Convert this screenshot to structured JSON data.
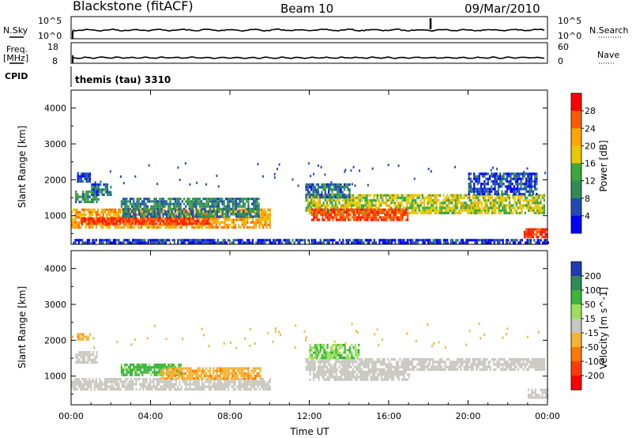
{
  "header": {
    "station": "Blackstone (fitACF)",
    "beam": "Beam 10",
    "date": "09/Mar/2010"
  },
  "top_panels": {
    "nsky_label": "N.Sky",
    "nsky_ticks": [
      "10^5",
      "10^0"
    ],
    "nsearch_label": "N.Search",
    "nsearch_ticks": [
      "10^5",
      "10^0"
    ],
    "freq_label": "Freq.",
    "freq_unit": "[MHz]",
    "freq_ticks": [
      "18",
      "8"
    ],
    "nave_label": "Nave",
    "nave_ticks": [
      "60",
      "0"
    ],
    "cpid_label": "CPID",
    "cpid_value": "themis (tau) 3310"
  },
  "chart_data": [
    {
      "type": "heatmap",
      "parameter": "power",
      "ylabel": "Slant Range [km]",
      "ylim": [
        200,
        4500
      ],
      "yticks": [
        "1000",
        "2000",
        "3000",
        "4000"
      ],
      "xlim": [
        0,
        24
      ],
      "colorbar_label": "Power [dB]",
      "colorbar_ticks": [
        "28",
        "24",
        "20",
        "16",
        "12",
        "8",
        "4"
      ],
      "colorbar_colors": [
        "#ff0000",
        "#ff5a00",
        "#ffa500",
        "#e8c800",
        "#3aa83a",
        "#2e8b57",
        "#1e4bb4",
        "#0000ff"
      ],
      "regions": [
        {
          "t0": 0.2,
          "t1": 1.4,
          "r0": 1350,
          "r1": 1700,
          "value": 10
        },
        {
          "t0": 0.3,
          "t1": 1.0,
          "r0": 1950,
          "r1": 2200,
          "value": 6
        },
        {
          "t0": 1.0,
          "t1": 2.0,
          "r0": 1600,
          "r1": 1900,
          "value": 8
        },
        {
          "t0": 0.0,
          "t1": 10.0,
          "r0": 700,
          "r1": 1200,
          "value": 20
        },
        {
          "t0": 0.5,
          "t1": 7.0,
          "r0": 750,
          "r1": 950,
          "value": 27
        },
        {
          "t0": 2.5,
          "t1": 9.5,
          "r0": 1000,
          "r1": 1500,
          "value": 9
        },
        {
          "t0": 11.8,
          "t1": 23.8,
          "r0": 1100,
          "r1": 1600,
          "value": 15
        },
        {
          "t0": 12.1,
          "t1": 17.0,
          "r0": 900,
          "r1": 1200,
          "value": 26
        },
        {
          "t0": 11.8,
          "t1": 14.0,
          "r0": 1500,
          "r1": 1900,
          "value": 8
        },
        {
          "t0": 20.0,
          "t1": 23.5,
          "r0": 1600,
          "r1": 2200,
          "value": 6
        },
        {
          "t0": 22.8,
          "t1": 24.0,
          "r0": 400,
          "r1": 650,
          "value": 28
        },
        {
          "t0": 0.0,
          "t1": 24.0,
          "r0": 250,
          "r1": 350,
          "value": 5
        }
      ]
    },
    {
      "type": "heatmap",
      "parameter": "velocity",
      "ylabel": "Slant Range [km]",
      "ylim": [
        200,
        4500
      ],
      "yticks": [
        "1000",
        "2000",
        "3000",
        "4000"
      ],
      "xlim": [
        0,
        24
      ],
      "xticks": [
        "00:00",
        "04:00",
        "08:00",
        "12:00",
        "16:00",
        "20:00",
        "00:00"
      ],
      "xlabel": "Time UT",
      "colorbar_label": "Velocity [m s^-1]",
      "colorbar_ticks": [
        "200",
        "100",
        "50",
        "15",
        "-15",
        "-50",
        "-100",
        "-200"
      ],
      "colorbar_colors": [
        "#1e3cb4",
        "#2e8b57",
        "#3cb43c",
        "#9be05a",
        "#c8c8c0",
        "#f5b432",
        "#ff7800",
        "#ff3c00",
        "#ff0000"
      ],
      "regions": [
        {
          "t0": 0.0,
          "t1": 10.0,
          "r0": 650,
          "r1": 950,
          "value": 0
        },
        {
          "t0": 0.2,
          "t1": 1.3,
          "r0": 1400,
          "r1": 1700,
          "value": 0
        },
        {
          "t0": 2.5,
          "t1": 5.5,
          "r0": 1050,
          "r1": 1350,
          "value": 40
        },
        {
          "t0": 4.5,
          "t1": 9.5,
          "r0": 900,
          "r1": 1250,
          "value": -40
        },
        {
          "t0": 11.8,
          "t1": 23.8,
          "r0": 1150,
          "r1": 1500,
          "value": 0
        },
        {
          "t0": 12.0,
          "t1": 17.0,
          "r0": 900,
          "r1": 1150,
          "value": 0
        },
        {
          "t0": 12.0,
          "t1": 14.5,
          "r0": 1500,
          "r1": 1900,
          "value": 30
        },
        {
          "t0": 23.0,
          "t1": 24.0,
          "r0": 400,
          "r1": 650,
          "value": 0
        },
        {
          "t0": 0.3,
          "t1": 1.0,
          "r0": 2000,
          "r1": 2200,
          "value": -40
        }
      ]
    }
  ],
  "time_label_series": {
    "nsky_trace": "N.Sky",
    "freq_trace": "Freq."
  }
}
